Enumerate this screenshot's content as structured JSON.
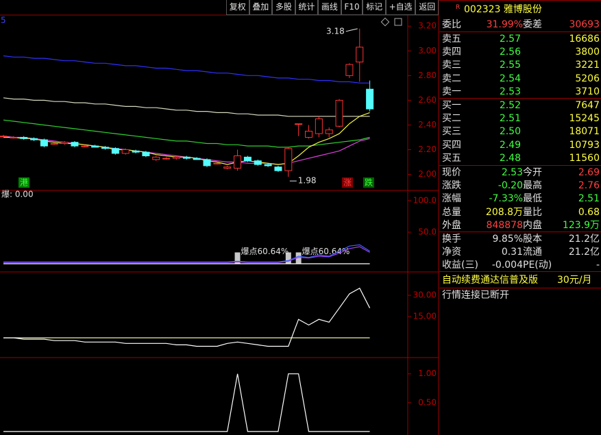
{
  "toolbar": {
    "buttons": [
      "复权",
      "叠加",
      "多股",
      "统计",
      "画线",
      "F10",
      "标记",
      "+自选",
      "返回"
    ]
  },
  "quote": {
    "flag": "R",
    "title": "002323 雅博股份",
    "rows": [
      {
        "cells": [
          "委比",
          "31.99%",
          "委差",
          "30693"
        ],
        "colors": [
          "#e0e0e0",
          "#ff4040",
          "#e0e0e0",
          "#ff4040"
        ]
      },
      {
        "cells": [
          "卖五",
          "2.57",
          "16686"
        ],
        "colors": [
          "#e0e0e0",
          "#40ff40",
          "#ffff40"
        ]
      },
      {
        "cells": [
          "卖四",
          "2.56",
          "3800"
        ],
        "colors": [
          "#e0e0e0",
          "#40ff40",
          "#ffff40"
        ]
      },
      {
        "cells": [
          "卖三",
          "2.55",
          "3221"
        ],
        "colors": [
          "#e0e0e0",
          "#40ff40",
          "#ffff40"
        ]
      },
      {
        "cells": [
          "卖二",
          "2.54",
          "5206"
        ],
        "colors": [
          "#e0e0e0",
          "#40ff40",
          "#ffff40"
        ]
      },
      {
        "cells": [
          "卖一",
          "2.53",
          "3710"
        ],
        "colors": [
          "#e0e0e0",
          "#40ff40",
          "#ffff40"
        ]
      },
      {
        "cells": [
          "买一",
          "2.52",
          "7647"
        ],
        "colors": [
          "#e0e0e0",
          "#40ff40",
          "#ffff40"
        ]
      },
      {
        "cells": [
          "买二",
          "2.51",
          "15245"
        ],
        "colors": [
          "#e0e0e0",
          "#40ff40",
          "#ffff40"
        ]
      },
      {
        "cells": [
          "买三",
          "2.50",
          "18071"
        ],
        "colors": [
          "#e0e0e0",
          "#40ff40",
          "#ffff40"
        ]
      },
      {
        "cells": [
          "买四",
          "2.49",
          "10793"
        ],
        "colors": [
          "#e0e0e0",
          "#40ff40",
          "#ffff40"
        ]
      },
      {
        "cells": [
          "买五",
          "2.48",
          "11560"
        ],
        "colors": [
          "#e0e0e0",
          "#40ff40",
          "#ffff40"
        ]
      },
      {
        "cells": [
          "现价",
          "2.53",
          "今开",
          "2.69"
        ],
        "colors": [
          "#e0e0e0",
          "#40ff40",
          "#e0e0e0",
          "#ff4040"
        ]
      },
      {
        "cells": [
          "涨跌",
          "-0.20",
          "最高",
          "2.76"
        ],
        "colors": [
          "#e0e0e0",
          "#40ff40",
          "#e0e0e0",
          "#ff4040"
        ]
      },
      {
        "cells": [
          "涨幅",
          "-7.33%",
          "最低",
          "2.51"
        ],
        "colors": [
          "#e0e0e0",
          "#40ff40",
          "#e0e0e0",
          "#40ff40"
        ]
      },
      {
        "cells": [
          "总量",
          "208.8万",
          "量比",
          "0.68"
        ],
        "colors": [
          "#e0e0e0",
          "#ffff40",
          "#e0e0e0",
          "#ffff40"
        ]
      },
      {
        "cells": [
          "外盘",
          "848878",
          "内盘",
          "123.9万"
        ],
        "colors": [
          "#e0e0e0",
          "#ff4040",
          "#e0e0e0",
          "#40ff40"
        ]
      },
      {
        "cells": [
          "换手",
          "9.85%",
          "股本",
          "21.2亿"
        ],
        "colors": [
          "#e0e0e0",
          "#e0e0e0",
          "#e0e0e0",
          "#e0e0e0"
        ]
      },
      {
        "cells": [
          "净资",
          "0.31",
          "流通",
          "21.2亿"
        ],
        "colors": [
          "#e0e0e0",
          "#e0e0e0",
          "#e0e0e0",
          "#e0e0e0"
        ]
      },
      {
        "cells": [
          "收益(三)",
          "-0.004",
          "PE(动)",
          "-"
        ],
        "colors": [
          "#e0e0e0",
          "#e0e0e0",
          "#e0e0e0",
          "#e0e0e0"
        ]
      }
    ],
    "promo": "自动续费通达信普及版",
    "price": "30元/月",
    "status": "行情连接已断开"
  },
  "chart_data": [
    {
      "type": "candlestick",
      "legend": "5",
      "categories": [
        null,
        null,
        null,
        null,
        null,
        null,
        null,
        null,
        null,
        null,
        null,
        null,
        null,
        null,
        null,
        null,
        null,
        null,
        null,
        null,
        null,
        null,
        null,
        null,
        null,
        null,
        null,
        null,
        null,
        null,
        null,
        null,
        null,
        null,
        null,
        null,
        null
      ],
      "open": [
        2.31,
        2.3,
        2.3,
        2.29,
        2.28,
        2.25,
        2.25,
        2.26,
        2.23,
        2.23,
        2.22,
        2.21,
        2.17,
        2.19,
        2.18,
        2.12,
        2.13,
        2.13,
        2.14,
        2.13,
        2.12,
        2.09,
        2.05,
        2.05,
        2.14,
        2.11,
        2.08,
        2.06,
        2.03,
        2.41,
        2.3,
        2.33,
        2.33,
        2.39,
        2.8,
        2.91,
        2.69
      ],
      "high": [
        2.32,
        2.31,
        2.31,
        2.3,
        2.29,
        2.26,
        2.27,
        2.27,
        2.24,
        2.24,
        2.23,
        2.22,
        2.21,
        2.2,
        2.19,
        2.15,
        2.14,
        2.15,
        2.15,
        2.14,
        2.13,
        2.1,
        2.07,
        2.2,
        2.15,
        2.12,
        2.09,
        2.07,
        2.22,
        2.41,
        2.4,
        2.47,
        2.38,
        2.61,
        2.9,
        3.18,
        2.76
      ],
      "low": [
        2.3,
        2.29,
        2.28,
        2.27,
        2.22,
        2.24,
        2.24,
        2.22,
        2.22,
        2.22,
        2.2,
        2.16,
        2.16,
        2.17,
        2.14,
        2.11,
        2.12,
        2.12,
        2.12,
        2.12,
        2.06,
        2.08,
        2.04,
        2.03,
        2.1,
        2.07,
        2.06,
        2.02,
        1.98,
        2.31,
        2.29,
        2.3,
        2.3,
        2.38,
        2.78,
        2.75,
        2.51
      ],
      "close": [
        2.31,
        2.3,
        2.29,
        2.28,
        2.23,
        2.25,
        2.26,
        2.23,
        2.23,
        2.22,
        2.21,
        2.17,
        2.2,
        2.18,
        2.15,
        2.14,
        2.13,
        2.14,
        2.13,
        2.12,
        2.07,
        2.09,
        2.06,
        2.15,
        2.11,
        2.08,
        2.07,
        2.03,
        2.21,
        2.41,
        2.35,
        2.45,
        2.36,
        2.6,
        2.89,
        3.03,
        2.53
      ],
      "up_color": "#ff3232",
      "down_color": "#54fcfc",
      "lines": [
        {
          "color": "#3030ff",
          "values": [
            2.96,
            2.95,
            2.95,
            2.94,
            2.94,
            2.93,
            2.92,
            2.92,
            2.91,
            2.9,
            2.9,
            2.89,
            2.88,
            2.88,
            2.87,
            2.86,
            2.86,
            2.85,
            2.84,
            2.84,
            2.83,
            2.82,
            2.82,
            2.81,
            2.8,
            2.8,
            2.79,
            2.78,
            2.78,
            2.77,
            2.77,
            2.76,
            2.76,
            2.75,
            2.75,
            2.74,
            2.74
          ]
        },
        {
          "color": "#d8d8c0",
          "values": [
            2.62,
            2.61,
            2.61,
            2.6,
            2.6,
            2.59,
            2.59,
            2.58,
            2.58,
            2.57,
            2.57,
            2.56,
            2.55,
            2.55,
            2.54,
            2.54,
            2.53,
            2.52,
            2.52,
            2.51,
            2.51,
            2.5,
            2.5,
            2.49,
            2.49,
            2.48,
            2.48,
            2.48,
            2.47,
            2.47,
            2.47,
            2.47,
            2.47,
            2.47,
            2.47,
            2.47,
            2.47
          ]
        },
        {
          "color": "#30d030",
          "values": [
            2.44,
            2.43,
            2.42,
            2.41,
            2.4,
            2.39,
            2.38,
            2.37,
            2.36,
            2.35,
            2.34,
            2.33,
            2.32,
            2.31,
            2.3,
            2.29,
            2.28,
            2.27,
            2.27,
            2.26,
            2.25,
            2.25,
            2.24,
            2.24,
            2.23,
            2.23,
            2.23,
            2.22,
            2.22,
            2.23,
            2.23,
            2.24,
            2.25,
            2.26,
            2.27,
            2.28,
            2.3
          ]
        },
        {
          "color": "#e040e0",
          "values": [
            2.31,
            2.3,
            2.3,
            2.29,
            2.28,
            2.27,
            2.26,
            2.25,
            2.24,
            2.23,
            2.22,
            2.21,
            2.2,
            2.19,
            2.18,
            2.17,
            2.16,
            2.15,
            2.14,
            2.13,
            2.12,
            2.11,
            2.1,
            2.1,
            2.09,
            2.09,
            2.09,
            2.08,
            2.09,
            2.11,
            2.13,
            2.15,
            2.17,
            2.19,
            2.23,
            2.27,
            2.29
          ]
        },
        {
          "color": "#f0f040",
          "values": [
            2.3,
            2.3,
            2.29,
            2.29,
            2.27,
            2.26,
            2.25,
            2.25,
            2.24,
            2.23,
            2.22,
            2.2,
            2.2,
            2.19,
            2.18,
            2.16,
            2.15,
            2.14,
            2.14,
            2.13,
            2.11,
            2.1,
            2.08,
            2.1,
            2.11,
            2.1,
            2.09,
            2.08,
            2.09,
            2.15,
            2.22,
            2.26,
            2.29,
            2.33,
            2.41,
            2.47,
            2.5
          ]
        }
      ],
      "annotations": [
        "3.18",
        "1.98"
      ],
      "markers": [
        "港",
        "涨",
        "跌"
      ],
      "ylim": [
        1.87,
        3.29
      ],
      "yticks": [
        {
          "value": 3.2,
          "label": "3.20"
        },
        {
          "value": 3.0,
          "label": "3.00"
        },
        {
          "value": 2.8,
          "label": "2.80"
        },
        {
          "value": 2.6,
          "label": "2.60"
        },
        {
          "value": 2.4,
          "label": "2.40"
        },
        {
          "value": 2.2,
          "label": "2.20"
        },
        {
          "value": 2.0,
          "label": "2.00"
        }
      ]
    },
    {
      "type": "indicator",
      "label": "爆: 0.00",
      "bars": [
        0,
        0,
        0,
        0,
        0,
        0,
        0,
        0,
        0,
        0,
        0,
        0,
        0,
        0,
        0,
        0,
        0,
        0,
        0,
        0,
        0,
        0,
        0,
        18,
        0,
        0,
        0,
        0,
        18,
        18,
        0,
        0,
        0,
        0,
        0,
        0,
        0
      ],
      "bar_color": "#c8c8c8",
      "annotations": [
        "爆点60.64%",
        "爆点60.64%"
      ],
      "lines": [
        {
          "color": "#ffffff",
          "values": [
            0,
            0,
            0,
            0,
            0,
            0,
            0,
            0,
            0,
            0,
            0,
            0,
            0,
            0,
            0,
            0,
            0,
            0,
            0,
            0,
            0,
            0,
            0,
            0,
            0,
            0,
            0,
            0,
            0,
            0,
            0,
            0,
            0,
            0,
            0,
            0,
            0
          ]
        },
        {
          "color": "#a040ff",
          "values": [
            2,
            2,
            2,
            2,
            2,
            2,
            2,
            2,
            2,
            2,
            2,
            2,
            2,
            2,
            2,
            2,
            2,
            2,
            2,
            2,
            2,
            2,
            2,
            3,
            2,
            2,
            2,
            2,
            4,
            10,
            9,
            12,
            11,
            17,
            24,
            27,
            18
          ]
        },
        {
          "color": "#4060ff",
          "values": [
            3,
            3,
            3,
            3,
            3,
            3,
            3,
            3,
            3,
            3,
            3,
            3,
            3,
            3,
            3,
            3,
            3,
            3,
            3,
            3,
            3,
            3,
            3,
            4,
            3,
            3,
            3,
            3,
            5,
            12,
            10,
            14,
            12,
            20,
            28,
            30,
            20
          ]
        }
      ],
      "ylim": [
        -13,
        114
      ],
      "yticks": [
        {
          "value": 100,
          "label": "100.0"
        },
        {
          "value": 50,
          "label": "50.0"
        }
      ]
    },
    {
      "type": "indicator",
      "lines": [
        {
          "color": "#f0f0a0",
          "values": [
            0,
            0,
            0,
            0,
            0,
            0,
            0,
            0,
            0,
            0,
            0,
            0,
            0,
            0,
            0,
            0,
            0,
            0,
            0,
            0,
            0,
            0,
            0,
            0,
            0,
            0,
            0,
            0,
            0,
            0,
            0,
            0,
            0,
            0,
            0,
            0,
            0
          ]
        },
        {
          "color": "#ffffff",
          "values": [
            0,
            0,
            -1,
            -1,
            -1,
            -2,
            -2,
            -2,
            -3,
            -3,
            -3,
            -3,
            -4,
            -4,
            -4,
            -4,
            -4,
            -5,
            -5,
            -6,
            -6,
            -6,
            -4,
            -3,
            -4,
            -5,
            -6,
            -6,
            -6,
            13,
            9,
            13,
            11,
            21,
            31,
            35,
            21
          ]
        }
      ],
      "ylim": [
        -14,
        46
      ],
      "yticks": [
        {
          "value": 30,
          "label": "30.00"
        },
        {
          "value": 15,
          "label": "15.00"
        }
      ]
    },
    {
      "type": "indicator",
      "lines": [
        {
          "color": "#ffffff",
          "values": [
            0,
            0,
            0,
            0,
            0,
            0,
            0,
            0,
            0,
            0,
            0,
            0,
            0,
            0,
            0,
            0,
            0,
            0,
            0,
            0,
            0,
            0,
            0,
            1,
            0,
            0,
            0,
            0,
            1,
            1,
            0,
            0,
            0,
            0,
            0,
            0,
            0
          ]
        }
      ],
      "ylim": [
        -0.06,
        1.27
      ],
      "yticks": [
        {
          "value": 1,
          "label": "1.00"
        },
        {
          "value": 0.5,
          "label": "0.50"
        }
      ]
    }
  ]
}
